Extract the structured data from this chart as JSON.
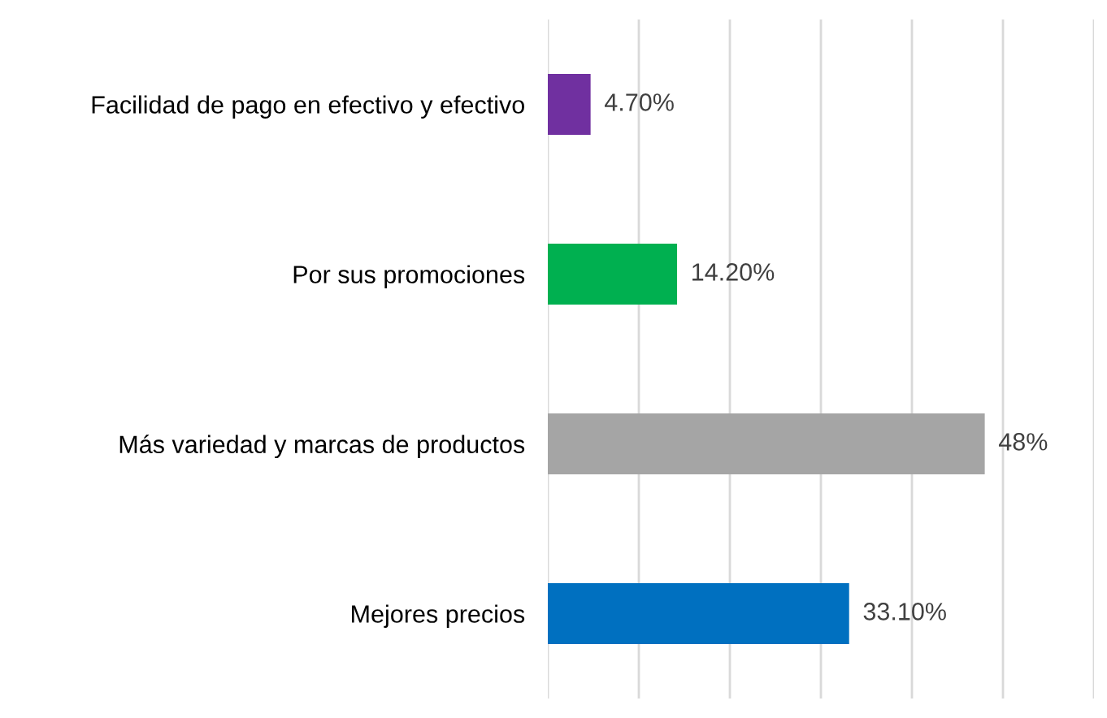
{
  "chart_data": {
    "type": "bar",
    "orientation": "horizontal",
    "categories": [
      "Facilidad de pago en efectivo y efectivo",
      "Por sus promociones",
      "Más variedad y marcas de productos",
      "Mejores precios"
    ],
    "values": [
      4.7,
      14.2,
      48,
      33.1
    ],
    "colors": [
      "#7030a0",
      "#00b050",
      "#a5a5a5",
      "#0070c0"
    ],
    "value_labels": [
      "4.70%",
      "14.20%",
      "48%",
      "33.10%"
    ],
    "xlim": [
      0,
      60
    ],
    "xticks": [
      {
        "value": 0,
        "label": null
      },
      {
        "value": 10,
        "label": null
      },
      {
        "value": 20,
        "label": null
      },
      {
        "value": 30,
        "label": null
      },
      {
        "value": 40,
        "label": null
      },
      {
        "value": 50,
        "label": null
      },
      {
        "value": 60,
        "label": null
      }
    ],
    "grid": "x",
    "tick_labels": "y"
  }
}
